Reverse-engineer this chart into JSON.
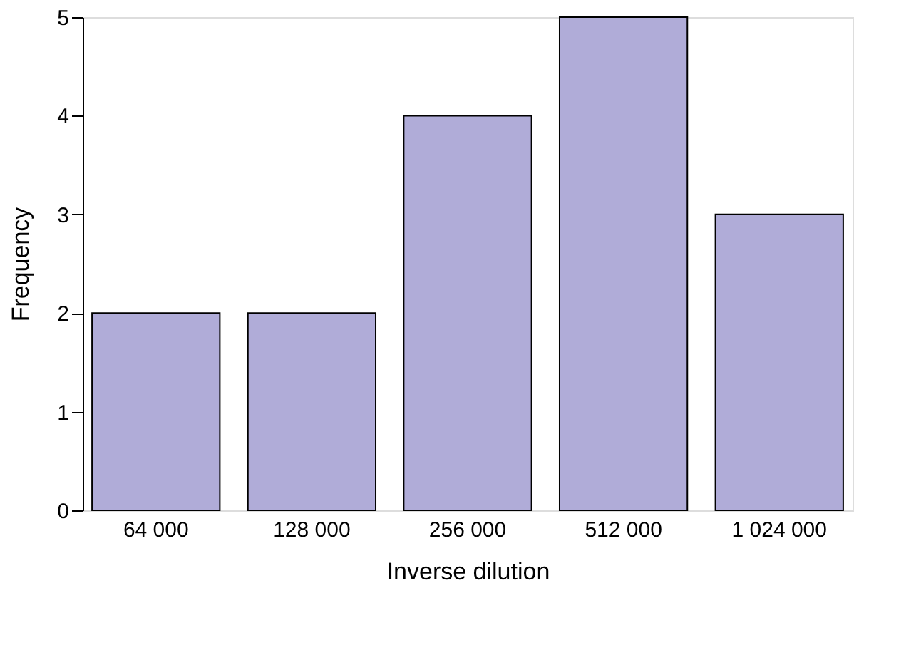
{
  "chart_data": {
    "type": "bar",
    "xlabel": "Inverse dilution",
    "ylabel": "Frequency",
    "categories": [
      "64 000",
      "128 000",
      "256 000",
      "512 000",
      "1 024 000"
    ],
    "values": [
      2,
      2,
      4,
      5,
      3
    ],
    "color": "#b0acd8",
    "ylim": [
      0,
      5
    ],
    "yticks": [
      0,
      1,
      2,
      3,
      4,
      5
    ],
    "grid": false
  }
}
